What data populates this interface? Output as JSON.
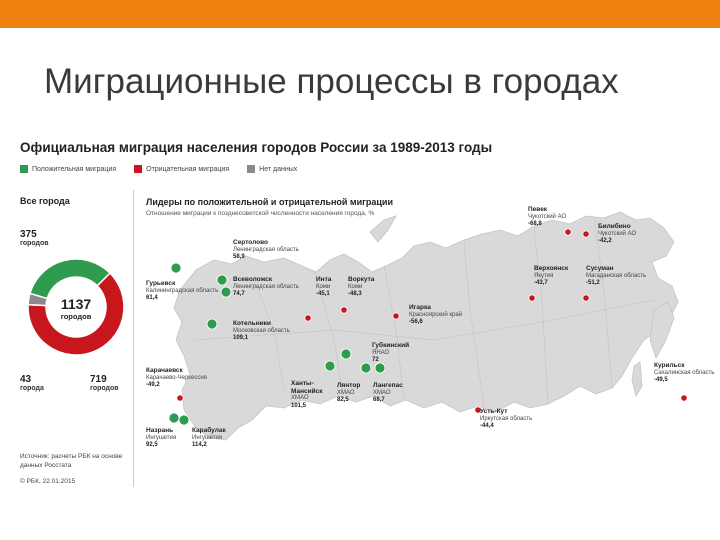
{
  "slide": {
    "title": "Миграционные процессы в городах"
  },
  "figure": {
    "title": "Официальная миграция населения городов России за 1989-2013 годы",
    "legend": [
      {
        "label": "Положительная миграция",
        "color": "#2e9b4f"
      },
      {
        "label": "Отрицательная миграция",
        "color": "#c8161d"
      },
      {
        "label": "Нет данных",
        "color": "#8a8a8a"
      }
    ],
    "all_cities_label": "Все города",
    "source": "Источник: расчеты РБК на основе данных Росстата",
    "copyright": "© РБК, 22.01.2015"
  },
  "chart_data": [
    {
      "type": "pie",
      "title": "Все города",
      "center_value": "1137",
      "center_label": "городов",
      "slices": [
        {
          "name": "Положительная миграция",
          "value": 375,
          "label": "375",
          "sublabel": "городов",
          "color": "#2e9b4f"
        },
        {
          "name": "Отрицательная миграция",
          "value": 719,
          "label": "719",
          "sublabel": "городов",
          "color": "#c8161d"
        },
        {
          "name": "Нет данных",
          "value": 43,
          "label": "43",
          "sublabel": "города",
          "color": "#8a8a8a"
        }
      ]
    },
    {
      "type": "scatter",
      "title": "Лидеры по положительной и отрицательной миграции",
      "subtitle": "Отношение миграции к позднесоветской численности населения города, %",
      "points": [
        {
          "name": "Певек",
          "region": "Чукотский АО",
          "value": "-68,8",
          "sign": "neg"
        },
        {
          "name": "Билибино",
          "region": "Чукотский АО",
          "value": "-42,2",
          "sign": "neg"
        },
        {
          "name": "Верхоянск",
          "region": "Якутия",
          "value": "-43,7",
          "sign": "neg"
        },
        {
          "name": "Сусуман",
          "region": "Магаданская область",
          "value": "-51,2",
          "sign": "neg"
        },
        {
          "name": "Курильск",
          "region": "Сахалинская область",
          "value": "-49,5",
          "sign": "neg"
        },
        {
          "name": "Усть-Кут",
          "region": "Иркутская область",
          "value": "-44,4",
          "sign": "neg"
        },
        {
          "name": "Игарка",
          "region": "Красноярский край",
          "value": "-56,6",
          "sign": "neg"
        },
        {
          "name": "Инта",
          "region": "Коми",
          "value": "-45,1",
          "sign": "neg"
        },
        {
          "name": "Воркута",
          "region": "Коми",
          "value": "-48,3",
          "sign": "neg"
        },
        {
          "name": "Карачаевск",
          "region": "Карачаево-Черкессия",
          "value": "-49,2",
          "sign": "neg"
        },
        {
          "name": "Сертолово",
          "region": "Ленинградская область",
          "value": "58,9",
          "sign": "pos"
        },
        {
          "name": "Всеволожск",
          "region": "Ленинградская область",
          "value": "74,7",
          "sign": "pos"
        },
        {
          "name": "Гурьевск",
          "region": "Калининградская область",
          "value": "61,4",
          "sign": "pos"
        },
        {
          "name": "Котельники",
          "region": "Московская область",
          "value": "109,1",
          "sign": "pos"
        },
        {
          "name": "Губкинский",
          "region": "ЯНАО",
          "value": "72",
          "sign": "pos"
        },
        {
          "name": "Ханты-Мансийск",
          "region": "ХМАО",
          "value": "101,5",
          "sign": "pos"
        },
        {
          "name": "Лянтор",
          "region": "ХМАО",
          "value": "82,5",
          "sign": "pos"
        },
        {
          "name": "Лангепас",
          "region": "ХМАО",
          "value": "68,7",
          "sign": "pos"
        },
        {
          "name": "Назрань",
          "region": "Ингушетия",
          "value": "92,5",
          "sign": "pos"
        },
        {
          "name": "Карабулак",
          "region": "Ингушетия",
          "value": "114,2",
          "sign": "pos"
        }
      ]
    }
  ]
}
